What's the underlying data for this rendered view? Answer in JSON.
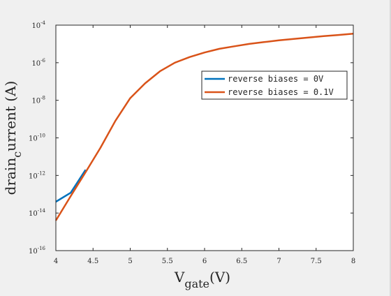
{
  "chart_data": {
    "type": "line",
    "title": "",
    "xlabel": {
      "main": "V",
      "sub": "gate",
      "tail": "(V)"
    },
    "ylabel": {
      "pre": "drain",
      "sub": "c",
      "post": "urrent (A)"
    },
    "xlim": [
      4,
      8
    ],
    "ylim_log10": [
      -16,
      -4
    ],
    "yscale": "log",
    "grid": false,
    "xticks": [
      "4",
      "4.5",
      "5",
      "5.5",
      "6",
      "6.5",
      "7",
      "7.5",
      "8"
    ],
    "yticks": [
      {
        "base": "10",
        "exp": "-16"
      },
      {
        "base": "10",
        "exp": "-14"
      },
      {
        "base": "10",
        "exp": "-12"
      },
      {
        "base": "10",
        "exp": "-10"
      },
      {
        "base": "10",
        "exp": "-8"
      },
      {
        "base": "10",
        "exp": "-6"
      },
      {
        "base": "10",
        "exp": "-4"
      }
    ],
    "legend_position": "right",
    "series": [
      {
        "name": "reverse biases = 0V",
        "color": "#0072bd",
        "x": [
          4.0,
          4.2,
          4.4
        ],
        "y": [
          4e-14,
          1.2e-13,
          2e-12
        ]
      },
      {
        "name": "reverse biases = 0.1V",
        "color": "#d95319",
        "x": [
          4.0,
          4.2,
          4.4,
          4.6,
          4.8,
          5.0,
          5.2,
          5.4,
          5.6,
          5.8,
          6.0,
          6.2,
          6.4,
          6.6,
          6.8,
          7.0,
          7.2,
          7.4,
          7.6,
          7.8,
          8.0
        ],
        "y": [
          4e-15,
          8e-14,
          1.5e-12,
          3e-11,
          8e-10,
          1.3e-08,
          8e-08,
          3.5e-07,
          1e-06,
          2e-06,
          3.5e-06,
          5.5e-06,
          7.5e-06,
          1e-05,
          1.25e-05,
          1.55e-05,
          1.85e-05,
          2.2e-05,
          2.6e-05,
          3e-05,
          3.5e-05
        ]
      }
    ]
  }
}
